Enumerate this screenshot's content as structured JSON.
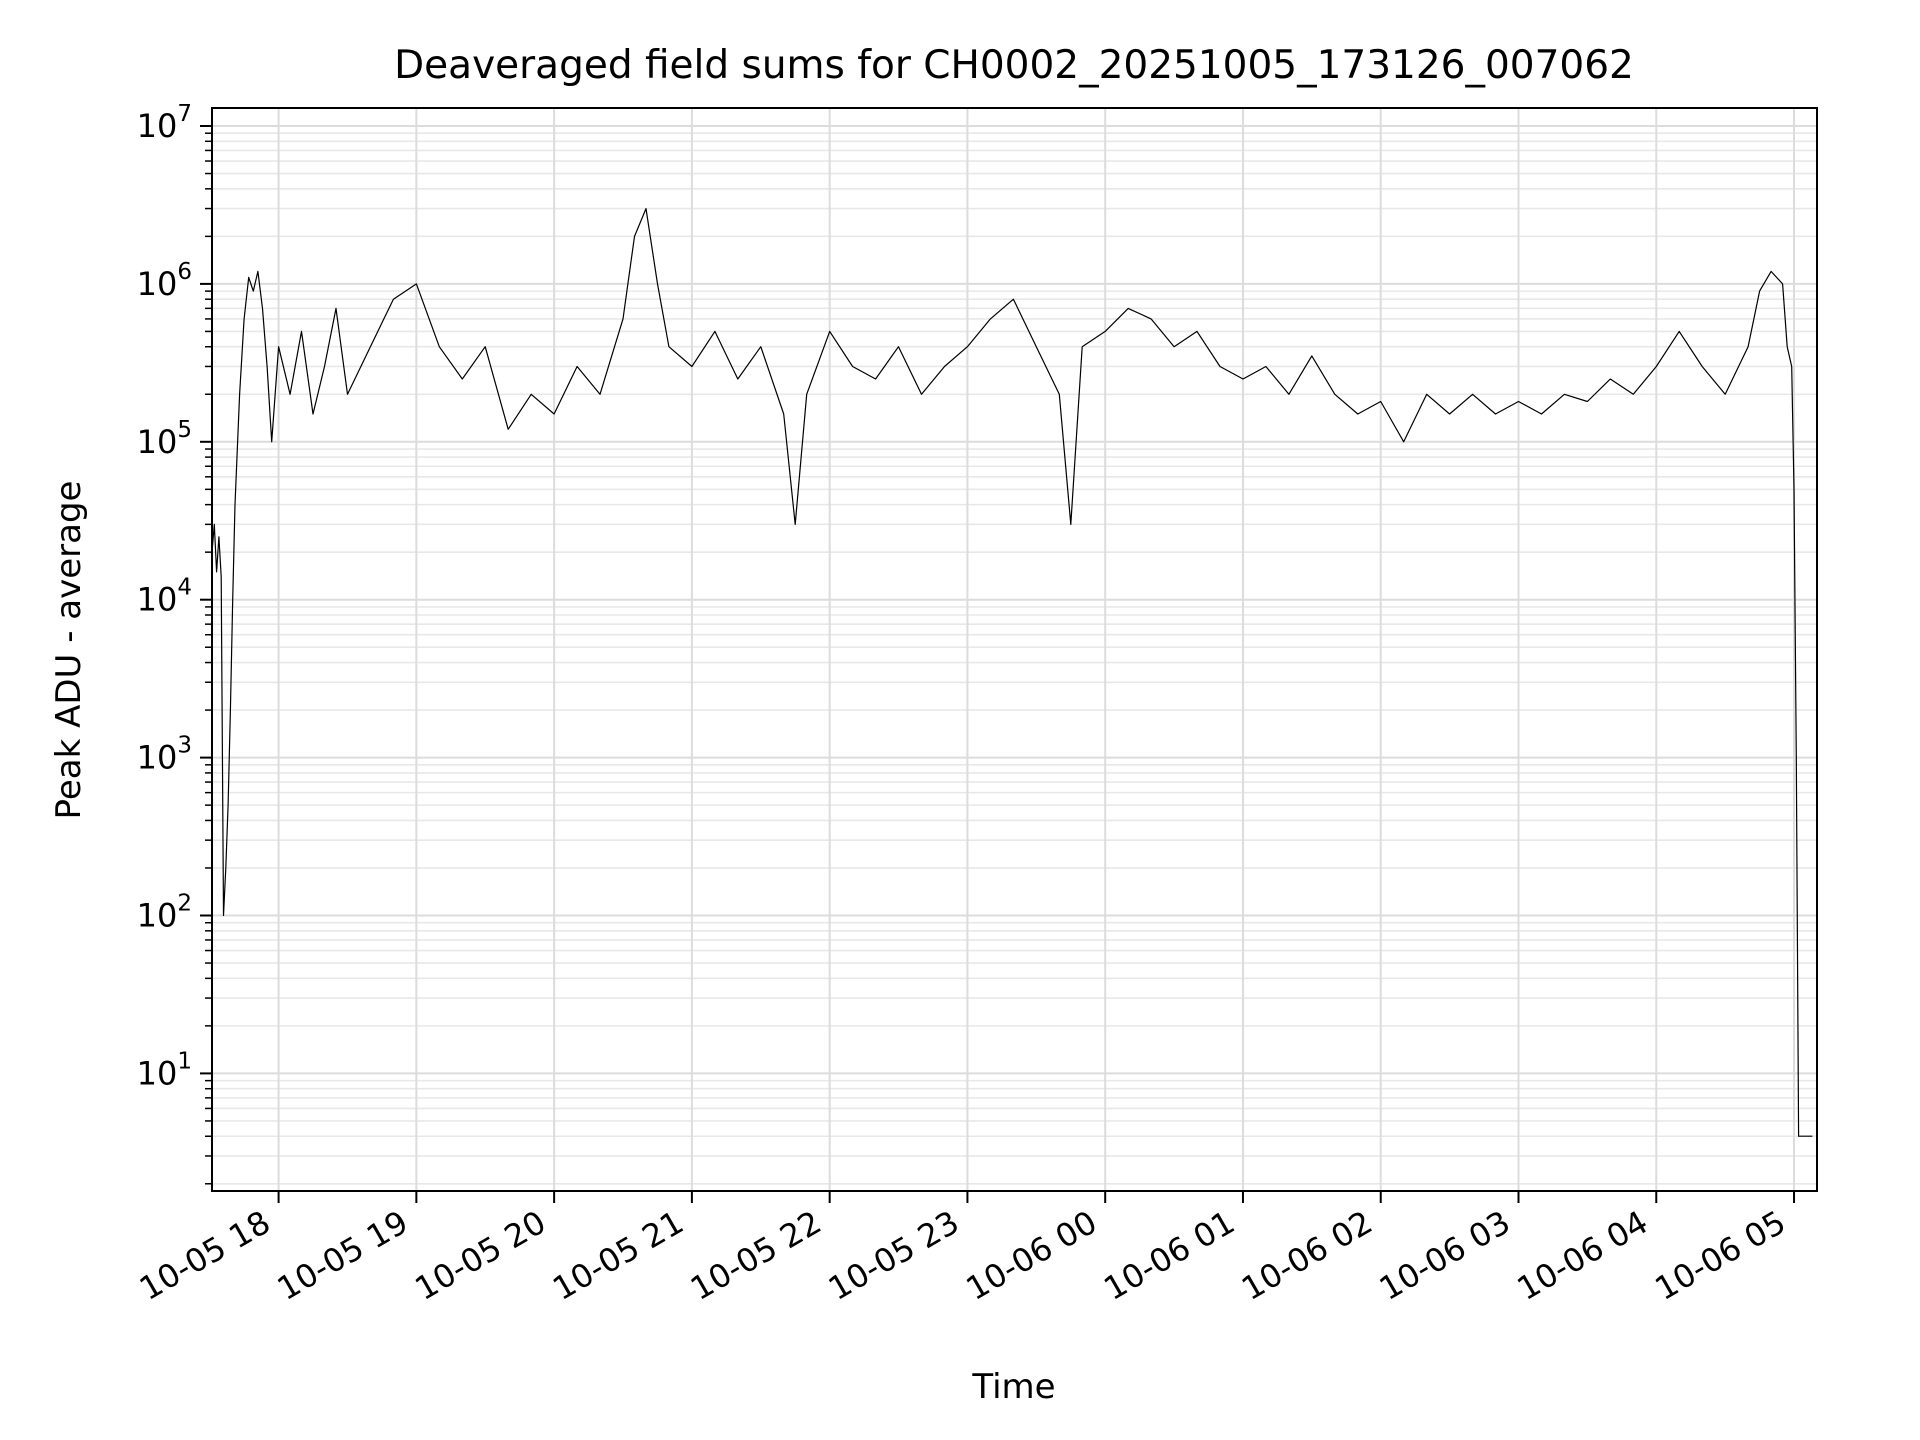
{
  "chart_data": {
    "type": "line",
    "title": "Deaveraged field sums for CH0002_20251005_173126_007062",
    "xlabel": "Time",
    "ylabel": "Peak ADU - average",
    "yscale": "log",
    "grid": true,
    "legend": "none",
    "line_color": "#000000",
    "xlim": [
      "2025-10-05 17:31",
      "2025-10-06 05:10"
    ],
    "ylim": [
      1.8,
      13000000
    ],
    "x_ticks": [
      {
        "value": "2025-10-05 18:00",
        "label": "10-05 18"
      },
      {
        "value": "2025-10-05 19:00",
        "label": "10-05 19"
      },
      {
        "value": "2025-10-05 20:00",
        "label": "10-05 20"
      },
      {
        "value": "2025-10-05 21:00",
        "label": "10-05 21"
      },
      {
        "value": "2025-10-05 22:00",
        "label": "10-05 22"
      },
      {
        "value": "2025-10-05 23:00",
        "label": "10-05 23"
      },
      {
        "value": "2025-10-06 00:00",
        "label": "10-06 00"
      },
      {
        "value": "2025-10-06 01:00",
        "label": "10-06 01"
      },
      {
        "value": "2025-10-06 02:00",
        "label": "10-06 02"
      },
      {
        "value": "2025-10-06 03:00",
        "label": "10-06 03"
      },
      {
        "value": "2025-10-06 04:00",
        "label": "10-06 04"
      },
      {
        "value": "2025-10-06 05:00",
        "label": "10-06 05"
      }
    ],
    "y_ticks": [
      {
        "value": 10,
        "base": "10",
        "exp": "1"
      },
      {
        "value": 100,
        "base": "10",
        "exp": "2"
      },
      {
        "value": 1000,
        "base": "10",
        "exp": "3"
      },
      {
        "value": 10000,
        "base": "10",
        "exp": "4"
      },
      {
        "value": 100000,
        "base": "10",
        "exp": "5"
      },
      {
        "value": 1000000,
        "base": "10",
        "exp": "6"
      },
      {
        "value": 10000000,
        "base": "10",
        "exp": "7"
      }
    ],
    "series": [
      {
        "points": [
          [
            "2025-10-05 17:31",
            20000
          ],
          [
            "2025-10-05 17:32",
            30000
          ],
          [
            "2025-10-05 17:33",
            15000
          ],
          [
            "2025-10-05 17:34",
            25000
          ],
          [
            "2025-10-05 17:35",
            14000
          ],
          [
            "2025-10-05 17:36",
            100
          ],
          [
            "2025-10-05 17:37",
            200
          ],
          [
            "2025-10-05 17:38",
            500
          ],
          [
            "2025-10-05 17:39",
            2000
          ],
          [
            "2025-10-05 17:40",
            10000
          ],
          [
            "2025-10-05 17:41",
            40000
          ],
          [
            "2025-10-05 17:43",
            200000
          ],
          [
            "2025-10-05 17:45",
            600000
          ],
          [
            "2025-10-05 17:47",
            1100000
          ],
          [
            "2025-10-05 17:49",
            900000
          ],
          [
            "2025-10-05 17:51",
            1200000
          ],
          [
            "2025-10-05 17:53",
            700000
          ],
          [
            "2025-10-05 17:55",
            300000
          ],
          [
            "2025-10-05 17:57",
            100000
          ],
          [
            "2025-10-05 18:00",
            400000
          ],
          [
            "2025-10-05 18:05",
            200000
          ],
          [
            "2025-10-05 18:10",
            500000
          ],
          [
            "2025-10-05 18:15",
            150000
          ],
          [
            "2025-10-05 18:20",
            300000
          ],
          [
            "2025-10-05 18:25",
            700000
          ],
          [
            "2025-10-05 18:30",
            200000
          ],
          [
            "2025-10-05 18:40",
            400000
          ],
          [
            "2025-10-05 18:50",
            800000
          ],
          [
            "2025-10-05 19:00",
            1000000
          ],
          [
            "2025-10-05 19:10",
            400000
          ],
          [
            "2025-10-05 19:20",
            250000
          ],
          [
            "2025-10-05 19:30",
            400000
          ],
          [
            "2025-10-05 19:40",
            120000
          ],
          [
            "2025-10-05 19:50",
            200000
          ],
          [
            "2025-10-05 20:00",
            150000
          ],
          [
            "2025-10-05 20:10",
            300000
          ],
          [
            "2025-10-05 20:20",
            200000
          ],
          [
            "2025-10-05 20:30",
            600000
          ],
          [
            "2025-10-05 20:35",
            2000000
          ],
          [
            "2025-10-05 20:40",
            3000000
          ],
          [
            "2025-10-05 20:45",
            1000000
          ],
          [
            "2025-10-05 20:50",
            400000
          ],
          [
            "2025-10-05 21:00",
            300000
          ],
          [
            "2025-10-05 21:10",
            500000
          ],
          [
            "2025-10-05 21:20",
            250000
          ],
          [
            "2025-10-05 21:30",
            400000
          ],
          [
            "2025-10-05 21:40",
            150000
          ],
          [
            "2025-10-05 21:45",
            30000
          ],
          [
            "2025-10-05 21:50",
            200000
          ],
          [
            "2025-10-05 22:00",
            500000
          ],
          [
            "2025-10-05 22:10",
            300000
          ],
          [
            "2025-10-05 22:20",
            250000
          ],
          [
            "2025-10-05 22:30",
            400000
          ],
          [
            "2025-10-05 22:40",
            200000
          ],
          [
            "2025-10-05 22:50",
            300000
          ],
          [
            "2025-10-05 23:00",
            400000
          ],
          [
            "2025-10-05 23:10",
            600000
          ],
          [
            "2025-10-05 23:20",
            800000
          ],
          [
            "2025-10-05 23:30",
            400000
          ],
          [
            "2025-10-05 23:40",
            200000
          ],
          [
            "2025-10-05 23:45",
            30000
          ],
          [
            "2025-10-05 23:50",
            400000
          ],
          [
            "2025-10-06 00:00",
            500000
          ],
          [
            "2025-10-06 00:10",
            700000
          ],
          [
            "2025-10-06 00:20",
            600000
          ],
          [
            "2025-10-06 00:30",
            400000
          ],
          [
            "2025-10-06 00:40",
            500000
          ],
          [
            "2025-10-06 00:50",
            300000
          ],
          [
            "2025-10-06 01:00",
            250000
          ],
          [
            "2025-10-06 01:10",
            300000
          ],
          [
            "2025-10-06 01:20",
            200000
          ],
          [
            "2025-10-06 01:30",
            350000
          ],
          [
            "2025-10-06 01:40",
            200000
          ],
          [
            "2025-10-06 01:50",
            150000
          ],
          [
            "2025-10-06 02:00",
            180000
          ],
          [
            "2025-10-06 02:10",
            100000
          ],
          [
            "2025-10-06 02:20",
            200000
          ],
          [
            "2025-10-06 02:30",
            150000
          ],
          [
            "2025-10-06 02:40",
            200000
          ],
          [
            "2025-10-06 02:50",
            150000
          ],
          [
            "2025-10-06 03:00",
            180000
          ],
          [
            "2025-10-06 03:10",
            150000
          ],
          [
            "2025-10-06 03:20",
            200000
          ],
          [
            "2025-10-06 03:30",
            180000
          ],
          [
            "2025-10-06 03:40",
            250000
          ],
          [
            "2025-10-06 03:50",
            200000
          ],
          [
            "2025-10-06 04:00",
            300000
          ],
          [
            "2025-10-06 04:10",
            500000
          ],
          [
            "2025-10-06 04:20",
            300000
          ],
          [
            "2025-10-06 04:30",
            200000
          ],
          [
            "2025-10-06 04:40",
            400000
          ],
          [
            "2025-10-06 04:45",
            900000
          ],
          [
            "2025-10-06 04:50",
            1200000
          ],
          [
            "2025-10-06 04:55",
            1000000
          ],
          [
            "2025-10-06 04:57",
            400000
          ],
          [
            "2025-10-06 04:59",
            300000
          ],
          [
            "2025-10-06 05:00",
            50000
          ],
          [
            "2025-10-06 05:01",
            1000
          ],
          [
            "2025-10-06 05:02",
            4
          ],
          [
            "2025-10-06 05:05",
            4
          ],
          [
            "2025-10-06 05:08",
            4
          ]
        ]
      }
    ]
  }
}
